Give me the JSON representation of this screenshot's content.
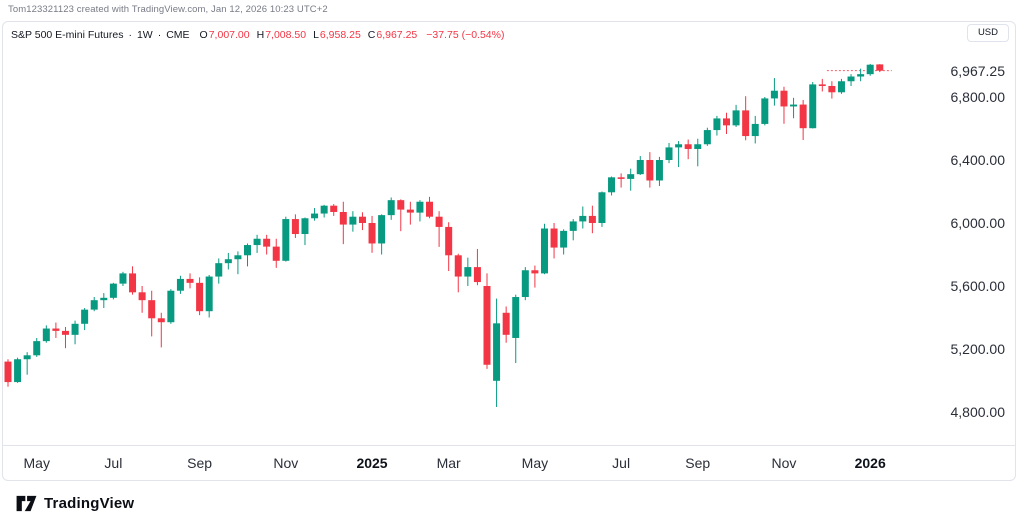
{
  "attribution": "Tom123321123 created with TradingView.com, Jan 12, 2026 10:23 UTC+2",
  "legend": {
    "symbol": "S&P 500 E-mini Futures",
    "separator": "·",
    "interval": "1W",
    "exchange": "CME",
    "open_label": "O",
    "open": "7,007.00",
    "high_label": "H",
    "high": "7,008.50",
    "low_label": "L",
    "low": "6,958.25",
    "close_label": "C",
    "close": "6,967.25",
    "change": "−37.75 (−0.54%)"
  },
  "currency_button": "USD",
  "brand": {
    "name": "TradingView"
  },
  "colors": {
    "up": "#089981",
    "down": "#F23645",
    "text": "#131722",
    "muted": "#787B86",
    "border": "#E2E4EB"
  },
  "chart_data": {
    "type": "candlestick",
    "title": "S&P 500 E-mini Futures · 1W · CME",
    "interval": "1W",
    "currency": "USD",
    "grid": false,
    "last_price": 6967.25,
    "y_axis": {
      "labels": [
        {
          "label": "6,967.25",
          "price": 6967.25
        },
        {
          "label": "6,800.00",
          "price": 6800
        },
        {
          "label": "6,400.00",
          "price": 6400
        },
        {
          "label": "6,000.00",
          "price": 6000
        },
        {
          "label": "5,600.00",
          "price": 5600
        },
        {
          "label": "5,200.00",
          "price": 5200
        },
        {
          "label": "4,800.00",
          "price": 4800
        }
      ],
      "range": [
        4650,
        7100
      ]
    },
    "x_axis": {
      "labels": [
        {
          "label": "May",
          "index": 3,
          "bold": false
        },
        {
          "label": "Jul",
          "index": 11,
          "bold": false
        },
        {
          "label": "Sep",
          "index": 20,
          "bold": false
        },
        {
          "label": "Nov",
          "index": 29,
          "bold": false
        },
        {
          "label": "2025",
          "index": 38,
          "bold": true
        },
        {
          "label": "Mar",
          "index": 46,
          "bold": false
        },
        {
          "label": "May",
          "index": 55,
          "bold": false
        },
        {
          "label": "Jul",
          "index": 64,
          "bold": false
        },
        {
          "label": "Sep",
          "index": 72,
          "bold": false
        },
        {
          "label": "Nov",
          "index": 81,
          "bold": false
        },
        {
          "label": "2026",
          "index": 90,
          "bold": true
        }
      ],
      "span": "Apr 2024 – Jan 2026, weekly bars"
    },
    "candles_format": [
      "open",
      "high",
      "low",
      "close"
    ],
    "candles": [
      [
        5120,
        5135,
        4960,
        4990
      ],
      [
        4990,
        5145,
        4985,
        5135
      ],
      [
        5135,
        5180,
        5037,
        5160
      ],
      [
        5160,
        5270,
        5150,
        5250
      ],
      [
        5250,
        5350,
        5240,
        5330
      ],
      [
        5330,
        5368,
        5270,
        5315
      ],
      [
        5315,
        5340,
        5205,
        5290
      ],
      [
        5290,
        5380,
        5230,
        5360
      ],
      [
        5360,
        5460,
        5320,
        5450
      ],
      [
        5450,
        5530,
        5440,
        5510
      ],
      [
        5510,
        5555,
        5460,
        5525
      ],
      [
        5525,
        5620,
        5515,
        5615
      ],
      [
        5615,
        5690,
        5600,
        5680
      ],
      [
        5680,
        5725,
        5545,
        5560
      ],
      [
        5560,
        5600,
        5430,
        5510
      ],
      [
        5510,
        5570,
        5280,
        5395
      ],
      [
        5395,
        5430,
        5210,
        5370
      ],
      [
        5370,
        5580,
        5360,
        5570
      ],
      [
        5570,
        5665,
        5550,
        5645
      ],
      [
        5645,
        5680,
        5585,
        5620
      ],
      [
        5620,
        5655,
        5415,
        5440
      ],
      [
        5440,
        5670,
        5400,
        5660
      ],
      [
        5660,
        5775,
        5615,
        5745
      ],
      [
        5745,
        5810,
        5705,
        5770
      ],
      [
        5770,
        5820,
        5675,
        5795
      ],
      [
        5795,
        5870,
        5725,
        5860
      ],
      [
        5860,
        5925,
        5810,
        5900
      ],
      [
        5900,
        5925,
        5800,
        5850
      ],
      [
        5850,
        5900,
        5715,
        5760
      ],
      [
        5760,
        6040,
        5755,
        6025
      ],
      [
        6025,
        6055,
        5905,
        5930
      ],
      [
        5930,
        6035,
        5860,
        6030
      ],
      [
        6030,
        6095,
        6015,
        6060
      ],
      [
        6060,
        6115,
        6035,
        6110
      ],
      [
        6110,
        6120,
        6045,
        6070
      ],
      [
        6070,
        6135,
        5866,
        5990
      ],
      [
        5990,
        6075,
        5945,
        6040
      ],
      [
        6040,
        6068,
        5955,
        6000
      ],
      [
        6000,
        6045,
        5811,
        5870
      ],
      [
        5870,
        6055,
        5800,
        6050
      ],
      [
        6050,
        6162,
        6020,
        6145
      ],
      [
        6145,
        6150,
        5948,
        6085
      ],
      [
        6085,
        6135,
        5990,
        6066
      ],
      [
        6066,
        6145,
        6010,
        6135
      ],
      [
        6135,
        6166,
        6030,
        6040
      ],
      [
        6040,
        6075,
        5848,
        5975
      ],
      [
        5975,
        6005,
        5695,
        5795
      ],
      [
        5795,
        5805,
        5560,
        5660
      ],
      [
        5660,
        5780,
        5600,
        5720
      ],
      [
        5720,
        5835,
        5605,
        5625
      ],
      [
        5600,
        5680,
        5074,
        5100
      ],
      [
        4998,
        5520,
        4832,
        5363
      ],
      [
        5430,
        5470,
        5240,
        5290
      ],
      [
        5270,
        5545,
        5111,
        5530
      ],
      [
        5530,
        5720,
        5510,
        5700
      ],
      [
        5700,
        5730,
        5590,
        5680
      ],
      [
        5680,
        5995,
        5675,
        5965
      ],
      [
        5965,
        6000,
        5775,
        5844
      ],
      [
        5844,
        5960,
        5800,
        5950
      ],
      [
        5950,
        6025,
        5890,
        6010
      ],
      [
        6010,
        6105,
        5965,
        6045
      ],
      [
        6045,
        6110,
        5935,
        6000
      ],
      [
        6000,
        6200,
        5975,
        6195
      ],
      [
        6195,
        6295,
        6175,
        6290
      ],
      [
        6290,
        6315,
        6225,
        6280
      ],
      [
        6280,
        6345,
        6205,
        6310
      ],
      [
        6310,
        6425,
        6305,
        6400
      ],
      [
        6400,
        6450,
        6225,
        6270
      ],
      [
        6270,
        6420,
        6235,
        6400
      ],
      [
        6400,
        6508,
        6380,
        6480
      ],
      [
        6480,
        6520,
        6355,
        6500
      ],
      [
        6500,
        6530,
        6405,
        6470
      ],
      [
        6470,
        6535,
        6360,
        6500
      ],
      [
        6500,
        6605,
        6490,
        6590
      ],
      [
        6590,
        6680,
        6555,
        6664
      ],
      [
        6664,
        6700,
        6565,
        6620
      ],
      [
        6620,
        6750,
        6610,
        6715
      ],
      [
        6715,
        6805,
        6525,
        6552
      ],
      [
        6552,
        6680,
        6505,
        6629
      ],
      [
        6629,
        6800,
        6620,
        6791
      ],
      [
        6791,
        6920,
        6745,
        6840
      ],
      [
        6840,
        6865,
        6630,
        6740
      ],
      [
        6740,
        6795,
        6665,
        6752
      ],
      [
        6752,
        6781,
        6527,
        6602
      ],
      [
        6602,
        6895,
        6600,
        6880
      ],
      [
        6880,
        6915,
        6835,
        6870
      ],
      [
        6870,
        6900,
        6790,
        6830
      ],
      [
        6830,
        6915,
        6820,
        6900
      ],
      [
        6900,
        6945,
        6870,
        6930
      ],
      [
        6930,
        6980,
        6900,
        6945
      ],
      [
        6945,
        7010,
        6935,
        7005
      ],
      [
        7007,
        7008.5,
        6958.25,
        6967.25
      ]
    ]
  }
}
